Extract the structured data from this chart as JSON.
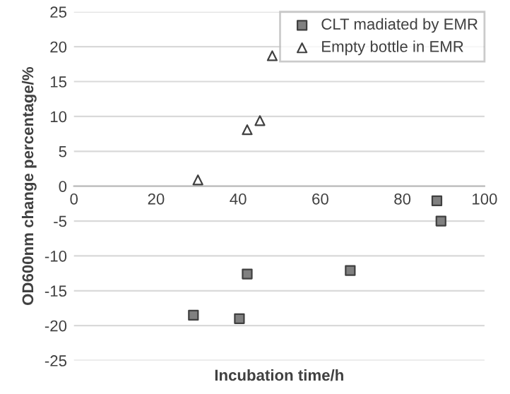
{
  "chart_data": {
    "type": "scatter",
    "xlabel": "Incubation time/h",
    "ylabel": "OD600nm change percentage/%",
    "xlim": [
      0,
      100
    ],
    "xticks": [
      0,
      20,
      40,
      60,
      80,
      100
    ],
    "ylim": [
      -25,
      25
    ],
    "yticks": [
      -25,
      -20,
      -15,
      -10,
      -5,
      0,
      5,
      10,
      15,
      20,
      25
    ],
    "grid": "y",
    "legend": "top right",
    "series": [
      {
        "name": "CLT madiated by EMR",
        "color": "#808080",
        "marker": "square",
        "x": [
          29.1,
          40.3,
          42.2,
          67.3,
          88.4,
          89.4
        ],
        "values": [
          -18.5,
          -19,
          -12.6,
          -12.1,
          -2.1,
          -5.0
        ]
      },
      {
        "name": "Empty bottle in EMR",
        "color": "#ffffff",
        "marker": "triangle",
        "x": [
          30.2,
          42.2,
          45.3,
          48.3
        ],
        "values": [
          0.9,
          8.1,
          9.4,
          18.7
        ]
      }
    ]
  }
}
